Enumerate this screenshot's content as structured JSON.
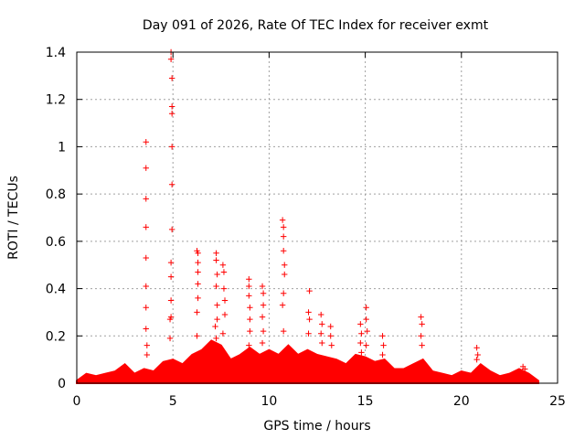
{
  "chart_data": {
    "type": "scatter",
    "title": "Day 091 of 2026, Rate Of TEC Index for receiver exmt",
    "xlabel": "GPS time / hours",
    "ylabel": "ROTI / TECUs",
    "xlim": [
      0,
      25
    ],
    "ylim": [
      0,
      1.4
    ],
    "xticks": [
      0,
      5,
      10,
      15,
      20,
      25
    ],
    "xtick_labels": [
      "0",
      "5",
      "10",
      "15",
      "20",
      "25"
    ],
    "yticks": [
      0,
      0.2,
      0.4,
      0.6,
      0.8,
      1,
      1.2,
      1.4
    ],
    "ytick_labels": [
      "0",
      "0.2",
      "0.4",
      "0.6",
      "0.8",
      "1",
      "1.2",
      "1.4"
    ],
    "grid": true,
    "marker": "+",
    "color": "#ff0000",
    "series": [
      {
        "name": "ROTI",
        "x": [
          3.6,
          3.6,
          3.6,
          3.6,
          3.6,
          3.6,
          3.6,
          3.6,
          3.65,
          3.65,
          4.9,
          4.9,
          4.95,
          4.95,
          4.95,
          4.95,
          4.95,
          4.95,
          4.9,
          4.9,
          4.9,
          4.9,
          4.85,
          4.85,
          6.25,
          6.3,
          6.3,
          6.3,
          6.3,
          6.3,
          6.25,
          6.25,
          7.25,
          7.25,
          7.3,
          7.25,
          7.3,
          7.3,
          7.2,
          7.25,
          7.6,
          7.65,
          7.65,
          7.7,
          7.7,
          7.6,
          8.95,
          8.95,
          8.95,
          9.0,
          9.0,
          9.0,
          8.95,
          9.65,
          9.7,
          9.7,
          9.65,
          9.7,
          9.65,
          10.7,
          10.75,
          10.75,
          10.75,
          10.8,
          10.8,
          10.75,
          10.7,
          10.75,
          12.1,
          12.05,
          12.1,
          12.05,
          12.7,
          12.75,
          12.7,
          12.75,
          13.2,
          13.2,
          13.25,
          14.75,
          14.8,
          14.75,
          14.8,
          15.05,
          15.05,
          15.1,
          15.05,
          15.9,
          15.95,
          15.9,
          17.9,
          17.95,
          17.9,
          17.95,
          20.8,
          20.85,
          20.8,
          23.2,
          23.3
        ],
        "y": [
          1.02,
          0.91,
          0.78,
          0.66,
          0.53,
          0.41,
          0.32,
          0.23,
          0.16,
          0.12,
          1.4,
          1.37,
          1.29,
          1.17,
          1.14,
          1.0,
          0.84,
          0.65,
          0.51,
          0.45,
          0.35,
          0.28,
          0.27,
          0.19,
          0.56,
          0.55,
          0.51,
          0.47,
          0.42,
          0.36,
          0.3,
          0.2,
          0.55,
          0.52,
          0.46,
          0.41,
          0.33,
          0.27,
          0.24,
          0.19,
          0.5,
          0.47,
          0.4,
          0.35,
          0.29,
          0.21,
          0.44,
          0.41,
          0.37,
          0.32,
          0.27,
          0.22,
          0.16,
          0.41,
          0.38,
          0.33,
          0.28,
          0.22,
          0.17,
          0.69,
          0.66,
          0.62,
          0.56,
          0.5,
          0.46,
          0.38,
          0.33,
          0.22,
          0.39,
          0.3,
          0.27,
          0.21,
          0.29,
          0.25,
          0.21,
          0.17,
          0.24,
          0.2,
          0.16,
          0.25,
          0.21,
          0.17,
          0.13,
          0.32,
          0.27,
          0.22,
          0.16,
          0.2,
          0.16,
          0.12,
          0.28,
          0.25,
          0.2,
          0.16,
          0.15,
          0.12,
          0.1,
          0.07,
          0.06
        ],
        "baseline": {
          "x": [
            0,
            0.5,
            1.0,
            1.5,
            2.0,
            2.5,
            3.0,
            3.5,
            4.0,
            4.5,
            5.0,
            5.5,
            6.0,
            6.5,
            7.0,
            7.5,
            8.0,
            8.5,
            9.0,
            9.5,
            10.0,
            10.5,
            11.0,
            11.5,
            12.0,
            12.5,
            13.0,
            13.5,
            14.0,
            14.5,
            15.0,
            15.5,
            16.0,
            16.5,
            17.0,
            17.5,
            18.0,
            18.5,
            19.0,
            19.5,
            20.0,
            20.5,
            21.0,
            21.5,
            22.0,
            22.5,
            23.0,
            23.5,
            24.0
          ],
          "y": [
            0.01,
            0.04,
            0.03,
            0.04,
            0.05,
            0.08,
            0.04,
            0.06,
            0.05,
            0.09,
            0.1,
            0.08,
            0.12,
            0.14,
            0.18,
            0.16,
            0.1,
            0.12,
            0.15,
            0.12,
            0.14,
            0.12,
            0.16,
            0.12,
            0.14,
            0.12,
            0.11,
            0.1,
            0.08,
            0.12,
            0.11,
            0.09,
            0.1,
            0.06,
            0.06,
            0.08,
            0.1,
            0.05,
            0.04,
            0.03,
            0.05,
            0.04,
            0.08,
            0.05,
            0.03,
            0.04,
            0.06,
            0.04,
            0.01
          ]
        }
      }
    ]
  }
}
